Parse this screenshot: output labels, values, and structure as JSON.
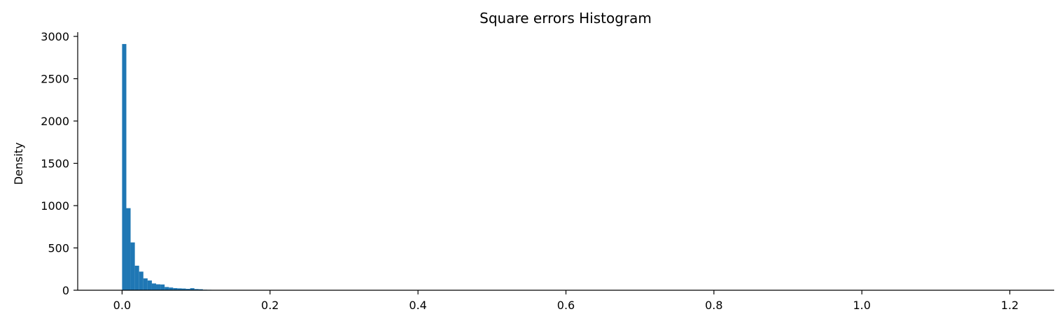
{
  "chart_data": {
    "type": "bar",
    "title": "Square errors Histogram",
    "xlabel": "",
    "ylabel": "Density",
    "xlim": [
      -0.06,
      1.26
    ],
    "ylim": [
      0,
      3050
    ],
    "xticks": [
      0.0,
      0.2,
      0.4,
      0.6,
      0.8,
      1.0,
      1.2
    ],
    "xtick_labels": [
      "0.0",
      "0.2",
      "0.4",
      "0.6",
      "0.8",
      "1.0",
      "1.2"
    ],
    "yticks": [
      0,
      500,
      1000,
      1500,
      2000,
      2500,
      3000
    ],
    "ytick_labels": [
      "0",
      "500",
      "1000",
      "1500",
      "2000",
      "2500",
      "3000"
    ],
    "grid": false,
    "bar_color": "#1f77b4",
    "bin_edges": [
      0.0,
      0.00575,
      0.0115,
      0.01725,
      0.023,
      0.02875,
      0.0345,
      0.04025,
      0.046,
      0.05175,
      0.0575,
      0.06325,
      0.069,
      0.07475,
      0.0805,
      0.08625,
      0.092,
      0.09775,
      0.1035,
      0.10925,
      0.115,
      0.12075,
      0.1265,
      0.13225,
      0.138,
      0.14375,
      0.1495,
      0.15525,
      0.161,
      0.16675,
      0.1725,
      0.17825,
      0.184,
      0.18975,
      0.1955,
      0.20125
    ],
    "values": [
      2910,
      970,
      565,
      290,
      220,
      140,
      115,
      80,
      70,
      68,
      38,
      32,
      25,
      22,
      20,
      16,
      24,
      14,
      12,
      6,
      5,
      4,
      3,
      3,
      3,
      2,
      2,
      2,
      2,
      1,
      1,
      1,
      1,
      1,
      1
    ]
  }
}
